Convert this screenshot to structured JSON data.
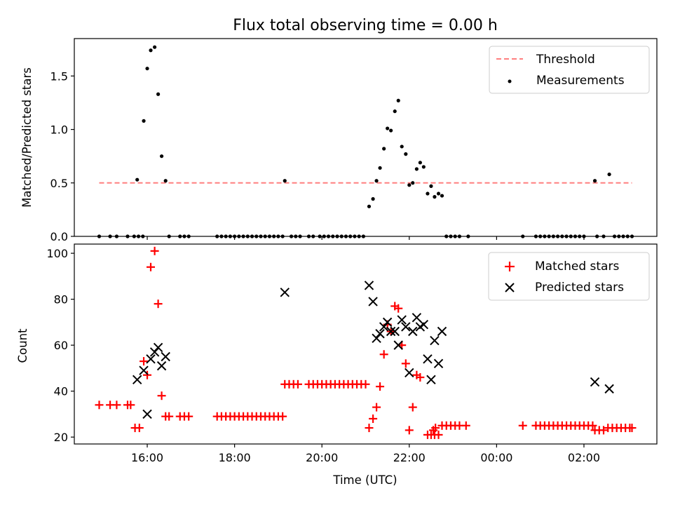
{
  "chart_data": [
    {
      "type": "scatter",
      "title": "Flux total observing time = 0.00 h",
      "xlabel": "",
      "ylabel": "Matched/Predicted stars",
      "xlim": [
        14.33,
        27.67
      ],
      "ylim": [
        0,
        1.85
      ],
      "yticks": [
        0.0,
        0.5,
        1.0,
        1.5
      ],
      "ytick_labels": [
        "0.0",
        "0.5",
        "1.0",
        "1.5"
      ],
      "legend_position": "top-right",
      "threshold": {
        "name": "Threshold",
        "value": 0.5,
        "x_range": [
          14.9,
          27.1
        ],
        "color": "#ff7f7f"
      },
      "series": [
        {
          "name": "Measurements",
          "color": "#000000",
          "points": [
            [
              14.9,
              0
            ],
            [
              15.15,
              0
            ],
            [
              15.3,
              0
            ],
            [
              15.55,
              0
            ],
            [
              15.7,
              0
            ],
            [
              15.8,
              0
            ],
            [
              15.9,
              0
            ],
            [
              15.77,
              0.53
            ],
            [
              15.92,
              1.08
            ],
            [
              16.0,
              1.57
            ],
            [
              16.08,
              1.74
            ],
            [
              16.17,
              1.77
            ],
            [
              16.25,
              1.33
            ],
            [
              16.33,
              0.75
            ],
            [
              16.42,
              0.52
            ],
            [
              16.5,
              0
            ],
            [
              16.75,
              0
            ],
            [
              16.85,
              0
            ],
            [
              16.95,
              0
            ],
            [
              17.6,
              0
            ],
            [
              17.7,
              0
            ],
            [
              17.8,
              0
            ],
            [
              17.9,
              0
            ],
            [
              18.0,
              0
            ],
            [
              18.1,
              0
            ],
            [
              18.2,
              0
            ],
            [
              18.3,
              0
            ],
            [
              18.4,
              0
            ],
            [
              18.5,
              0
            ],
            [
              18.6,
              0
            ],
            [
              18.7,
              0
            ],
            [
              18.8,
              0
            ],
            [
              18.9,
              0
            ],
            [
              19.0,
              0
            ],
            [
              19.1,
              0
            ],
            [
              19.15,
              0.52
            ],
            [
              19.3,
              0
            ],
            [
              19.4,
              0
            ],
            [
              19.5,
              0
            ],
            [
              19.7,
              0
            ],
            [
              19.8,
              0
            ],
            [
              19.95,
              0
            ],
            [
              20.05,
              0
            ],
            [
              20.15,
              0
            ],
            [
              20.25,
              0
            ],
            [
              20.35,
              0
            ],
            [
              20.45,
              0
            ],
            [
              20.55,
              0
            ],
            [
              20.65,
              0
            ],
            [
              20.75,
              0
            ],
            [
              20.85,
              0
            ],
            [
              20.95,
              0
            ],
            [
              21.08,
              0.28
            ],
            [
              21.17,
              0.35
            ],
            [
              21.25,
              0.52
            ],
            [
              21.33,
              0.64
            ],
            [
              21.42,
              0.82
            ],
            [
              21.5,
              1.01
            ],
            [
              21.58,
              0.99
            ],
            [
              21.67,
              1.17
            ],
            [
              21.75,
              1.27
            ],
            [
              21.83,
              0.84
            ],
            [
              21.92,
              0.77
            ],
            [
              22.0,
              0.48
            ],
            [
              22.08,
              0.5
            ],
            [
              22.17,
              0.63
            ],
            [
              22.25,
              0.69
            ],
            [
              22.33,
              0.65
            ],
            [
              22.42,
              0.4
            ],
            [
              22.5,
              0.47
            ],
            [
              22.58,
              0.37
            ],
            [
              22.67,
              0.4
            ],
            [
              22.75,
              0.38
            ],
            [
              22.85,
              0
            ],
            [
              22.95,
              0
            ],
            [
              23.05,
              0
            ],
            [
              23.15,
              0
            ],
            [
              23.35,
              0
            ],
            [
              24.6,
              0
            ],
            [
              24.9,
              0
            ],
            [
              25.0,
              0
            ],
            [
              25.1,
              0
            ],
            [
              25.2,
              0
            ],
            [
              25.3,
              0
            ],
            [
              25.4,
              0
            ],
            [
              25.5,
              0
            ],
            [
              25.6,
              0
            ],
            [
              25.7,
              0
            ],
            [
              25.8,
              0
            ],
            [
              25.9,
              0
            ],
            [
              26.0,
              0
            ],
            [
              26.25,
              0.52
            ],
            [
              26.58,
              0.58
            ],
            [
              26.3,
              0
            ],
            [
              26.45,
              0
            ],
            [
              26.7,
              0
            ],
            [
              26.8,
              0
            ],
            [
              26.9,
              0
            ],
            [
              27.0,
              0
            ],
            [
              27.1,
              0
            ]
          ]
        }
      ]
    },
    {
      "type": "scatter",
      "title": "",
      "xlabel": "Time (UTC)",
      "ylabel": "Count",
      "xlim": [
        14.33,
        27.67
      ],
      "ylim": [
        17,
        104
      ],
      "yticks": [
        20,
        40,
        60,
        80,
        100
      ],
      "ytick_labels": [
        "20",
        "40",
        "60",
        "80",
        "100"
      ],
      "xticks": [
        16,
        18,
        20,
        22,
        24,
        26
      ],
      "xtick_labels": [
        "16:00",
        "18:00",
        "20:00",
        "22:00",
        "00:00",
        "02:00"
      ],
      "legend_position": "top-right",
      "series": [
        {
          "name": "Matched stars",
          "marker": "+",
          "color": "#ff0000",
          "points": [
            [
              14.9,
              34
            ],
            [
              15.15,
              34
            ],
            [
              15.3,
              34
            ],
            [
              15.55,
              34
            ],
            [
              15.62,
              34
            ],
            [
              15.72,
              24
            ],
            [
              15.82,
              24
            ],
            [
              15.92,
              53
            ],
            [
              16.0,
              47
            ],
            [
              16.08,
              94
            ],
            [
              16.17,
              101
            ],
            [
              16.25,
              78
            ],
            [
              16.33,
              38
            ],
            [
              16.42,
              29
            ],
            [
              16.5,
              29
            ],
            [
              16.75,
              29
            ],
            [
              16.85,
              29
            ],
            [
              16.95,
              29
            ],
            [
              17.6,
              29
            ],
            [
              17.7,
              29
            ],
            [
              17.8,
              29
            ],
            [
              17.9,
              29
            ],
            [
              18.0,
              29
            ],
            [
              18.1,
              29
            ],
            [
              18.2,
              29
            ],
            [
              18.3,
              29
            ],
            [
              18.4,
              29
            ],
            [
              18.5,
              29
            ],
            [
              18.6,
              29
            ],
            [
              18.7,
              29
            ],
            [
              18.8,
              29
            ],
            [
              18.9,
              29
            ],
            [
              19.0,
              29
            ],
            [
              19.1,
              29
            ],
            [
              19.15,
              43
            ],
            [
              19.25,
              43
            ],
            [
              19.35,
              43
            ],
            [
              19.45,
              43
            ],
            [
              19.7,
              43
            ],
            [
              19.8,
              43
            ],
            [
              19.9,
              43
            ],
            [
              20.0,
              43
            ],
            [
              20.1,
              43
            ],
            [
              20.2,
              43
            ],
            [
              20.3,
              43
            ],
            [
              20.4,
              43
            ],
            [
              20.5,
              43
            ],
            [
              20.6,
              43
            ],
            [
              20.7,
              43
            ],
            [
              20.8,
              43
            ],
            [
              20.9,
              43
            ],
            [
              21.0,
              43
            ],
            [
              21.08,
              24
            ],
            [
              21.17,
              28
            ],
            [
              21.25,
              33
            ],
            [
              21.33,
              42
            ],
            [
              21.42,
              56
            ],
            [
              21.5,
              69
            ],
            [
              21.58,
              66
            ],
            [
              21.67,
              77
            ],
            [
              21.75,
              76
            ],
            [
              21.83,
              60
            ],
            [
              21.92,
              52
            ],
            [
              22.0,
              23
            ],
            [
              22.08,
              33
            ],
            [
              22.17,
              47
            ],
            [
              22.25,
              46
            ],
            [
              22.42,
              21
            ],
            [
              22.5,
              21
            ],
            [
              22.58,
              21
            ],
            [
              22.67,
              21
            ],
            [
              22.55,
              23
            ],
            [
              22.6,
              24
            ],
            [
              22.75,
              25
            ],
            [
              22.85,
              25
            ],
            [
              22.95,
              25
            ],
            [
              23.05,
              25
            ],
            [
              23.15,
              25
            ],
            [
              23.3,
              25
            ],
            [
              24.6,
              25
            ],
            [
              24.9,
              25
            ],
            [
              25.0,
              25
            ],
            [
              25.1,
              25
            ],
            [
              25.2,
              25
            ],
            [
              25.3,
              25
            ],
            [
              25.4,
              25
            ],
            [
              25.5,
              25
            ],
            [
              25.6,
              25
            ],
            [
              25.7,
              25
            ],
            [
              25.8,
              25
            ],
            [
              25.9,
              25
            ],
            [
              26.0,
              25
            ],
            [
              26.1,
              25
            ],
            [
              26.2,
              25
            ],
            [
              26.25,
              23
            ],
            [
              26.35,
              23
            ],
            [
              26.45,
              23
            ],
            [
              26.55,
              24
            ],
            [
              26.65,
              24
            ],
            [
              26.75,
              24
            ],
            [
              26.85,
              24
            ],
            [
              26.95,
              24
            ],
            [
              27.05,
              24
            ],
            [
              27.1,
              24
            ]
          ]
        },
        {
          "name": "Predicted stars",
          "marker": "x",
          "color": "#000000",
          "points": [
            [
              15.77,
              45
            ],
            [
              15.92,
              49
            ],
            [
              16.0,
              30
            ],
            [
              16.08,
              54
            ],
            [
              16.17,
              57
            ],
            [
              16.25,
              59
            ],
            [
              16.33,
              51
            ],
            [
              16.42,
              55
            ],
            [
              19.15,
              83
            ],
            [
              21.08,
              86
            ],
            [
              21.17,
              79
            ],
            [
              21.25,
              63
            ],
            [
              21.33,
              65
            ],
            [
              21.42,
              68
            ],
            [
              21.5,
              70
            ],
            [
              21.58,
              66
            ],
            [
              21.67,
              66
            ],
            [
              21.75,
              60
            ],
            [
              21.83,
              71
            ],
            [
              21.92,
              68
            ],
            [
              22.0,
              48
            ],
            [
              22.08,
              66
            ],
            [
              22.17,
              72
            ],
            [
              22.25,
              68
            ],
            [
              22.33,
              69
            ],
            [
              22.42,
              54
            ],
            [
              22.5,
              45
            ],
            [
              22.58,
              62
            ],
            [
              22.67,
              52
            ],
            [
              22.75,
              66
            ],
            [
              26.25,
              44
            ],
            [
              26.58,
              41
            ]
          ]
        }
      ]
    }
  ]
}
